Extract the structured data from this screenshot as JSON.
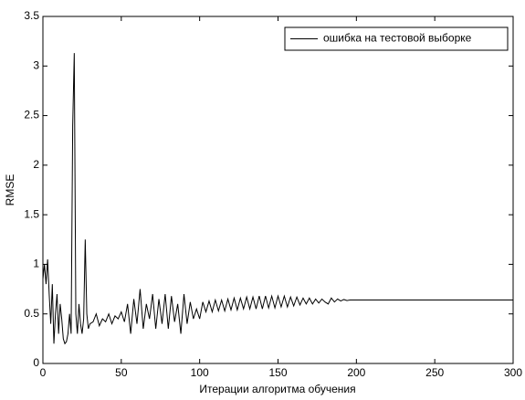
{
  "chart_data": {
    "type": "line",
    "xlabel": "Итерации алгоритма обучения",
    "ylabel": "RMSE",
    "xlim": [
      0,
      300
    ],
    "ylim": [
      0,
      3.5
    ],
    "xticks": [
      0,
      50,
      100,
      150,
      200,
      250,
      300
    ],
    "yticks": [
      0,
      0.5,
      1,
      1.5,
      2,
      2.5,
      3,
      3.5
    ],
    "grid": false,
    "legend": "upper right",
    "series": [
      {
        "name": "ошибка на тестовой выборке",
        "color": "#000000",
        "x": [
          0,
          1,
          2,
          3,
          4,
          5,
          6,
          7,
          8,
          9,
          10,
          11,
          12,
          13,
          14,
          15,
          16,
          17,
          18,
          19,
          20,
          21,
          22,
          23,
          24,
          25,
          26,
          27,
          28,
          29,
          30,
          32,
          34,
          36,
          38,
          40,
          42,
          44,
          46,
          48,
          50,
          52,
          54,
          56,
          58,
          60,
          62,
          64,
          66,
          68,
          70,
          72,
          74,
          76,
          78,
          80,
          82,
          84,
          86,
          88,
          90,
          92,
          94,
          96,
          98,
          100,
          102,
          104,
          106,
          108,
          110,
          112,
          114,
          116,
          118,
          120,
          122,
          124,
          126,
          128,
          130,
          132,
          134,
          136,
          138,
          140,
          142,
          144,
          146,
          148,
          150,
          152,
          154,
          156,
          158,
          160,
          162,
          164,
          166,
          168,
          170,
          172,
          174,
          176,
          178,
          180,
          182,
          184,
          186,
          188,
          190,
          192,
          194,
          196,
          198,
          200,
          250,
          300
        ],
        "values": [
          0.85,
          1.0,
          0.8,
          1.05,
          0.7,
          0.4,
          0.8,
          0.2,
          0.5,
          0.7,
          0.3,
          0.6,
          0.45,
          0.25,
          0.2,
          0.22,
          0.3,
          0.5,
          0.3,
          2.4,
          3.13,
          0.5,
          0.3,
          0.6,
          0.4,
          0.3,
          0.45,
          1.25,
          0.5,
          0.35,
          0.4,
          0.42,
          0.5,
          0.38,
          0.45,
          0.42,
          0.5,
          0.4,
          0.48,
          0.45,
          0.52,
          0.42,
          0.6,
          0.3,
          0.65,
          0.4,
          0.75,
          0.35,
          0.6,
          0.45,
          0.7,
          0.35,
          0.65,
          0.4,
          0.7,
          0.35,
          0.68,
          0.42,
          0.6,
          0.3,
          0.7,
          0.4,
          0.62,
          0.45,
          0.55,
          0.45,
          0.62,
          0.52,
          0.63,
          0.52,
          0.64,
          0.53,
          0.64,
          0.53,
          0.65,
          0.54,
          0.66,
          0.54,
          0.66,
          0.55,
          0.67,
          0.55,
          0.67,
          0.55,
          0.68,
          0.55,
          0.68,
          0.56,
          0.68,
          0.56,
          0.68,
          0.57,
          0.68,
          0.57,
          0.67,
          0.58,
          0.67,
          0.59,
          0.66,
          0.6,
          0.66,
          0.6,
          0.65,
          0.61,
          0.65,
          0.62,
          0.6,
          0.66,
          0.62,
          0.65,
          0.63,
          0.645,
          0.635,
          0.64,
          0.64,
          0.64,
          0.64,
          0.64
        ]
      }
    ]
  }
}
